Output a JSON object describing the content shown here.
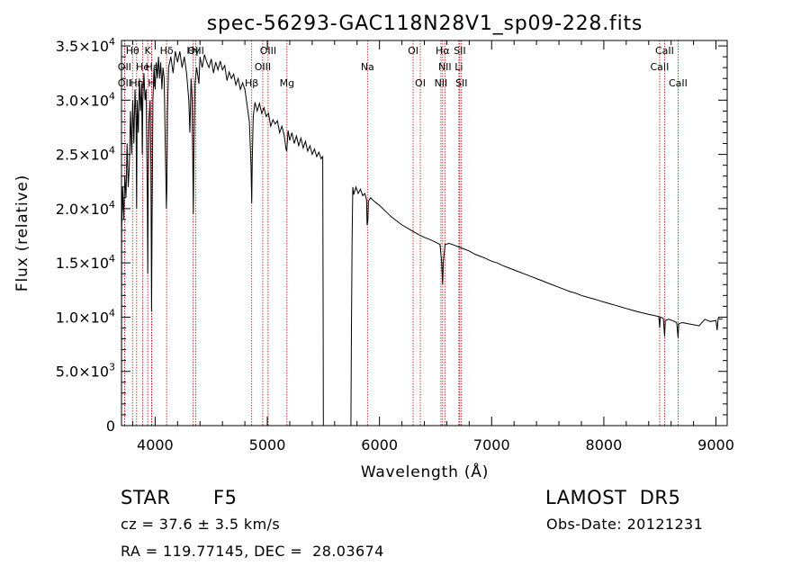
{
  "chart_data": {
    "type": "line",
    "title": "spec-56293-GAC118N28V1_sp09-228.fits",
    "xlabel": "Wavelength (Å)",
    "ylabel": "Flux (relative)",
    "xlim": [
      3700,
      9100
    ],
    "ylim": [
      0,
      35500
    ],
    "x_ticks": [
      4000,
      5000,
      6000,
      7000,
      8000,
      9000
    ],
    "x_tick_labels": [
      "4000",
      "5000",
      "6000",
      "7000",
      "8000",
      "9000"
    ],
    "y_ticks": [
      0,
      5000,
      10000,
      15000,
      20000,
      25000,
      30000,
      35000
    ],
    "y_tick_labels": [
      {
        "mant": "0",
        "exp": ""
      },
      {
        "mant": "5.0×10",
        "exp": "3"
      },
      {
        "mant": "1.0×10",
        "exp": "4"
      },
      {
        "mant": "1.5×10",
        "exp": "4"
      },
      {
        "mant": "2.0×10",
        "exp": "4"
      },
      {
        "mant": "2.5×10",
        "exp": "4"
      },
      {
        "mant": "3.0×10",
        "exp": "4"
      },
      {
        "mant": "3.5×10",
        "exp": "4"
      }
    ],
    "grid": false,
    "spectrum": [
      [
        3700,
        0
      ],
      [
        3702,
        18000
      ],
      [
        3710,
        22000
      ],
      [
        3720,
        19000
      ],
      [
        3730,
        23000
      ],
      [
        3740,
        21000
      ],
      [
        3750,
        26000
      ],
      [
        3760,
        22000
      ],
      [
        3770,
        24000
      ],
      [
        3780,
        29000
      ],
      [
        3790,
        25000
      ],
      [
        3800,
        30000
      ],
      [
        3810,
        26000
      ],
      [
        3820,
        31000
      ],
      [
        3830,
        28000
      ],
      [
        3835,
        20000
      ],
      [
        3840,
        30000
      ],
      [
        3850,
        27000
      ],
      [
        3860,
        32000
      ],
      [
        3870,
        29000
      ],
      [
        3880,
        31500
      ],
      [
        3885,
        25000
      ],
      [
        3890,
        30000
      ],
      [
        3900,
        32500
      ],
      [
        3910,
        30000
      ],
      [
        3920,
        31000
      ],
      [
        3930,
        21000
      ],
      [
        3934,
        14000
      ],
      [
        3938,
        22000
      ],
      [
        3945,
        28000
      ],
      [
        3955,
        30000
      ],
      [
        3962,
        24000
      ],
      [
        3968,
        10500
      ],
      [
        3972,
        18000
      ],
      [
        3980,
        30000
      ],
      [
        3990,
        33000
      ],
      [
        4000,
        31000
      ],
      [
        4010,
        33500
      ],
      [
        4020,
        32000
      ],
      [
        4030,
        34000
      ],
      [
        4040,
        32000
      ],
      [
        4050,
        33500
      ],
      [
        4060,
        31000
      ],
      [
        4070,
        33000
      ],
      [
        4080,
        32000
      ],
      [
        4090,
        26000
      ],
      [
        4100,
        20000
      ],
      [
        4104,
        22000
      ],
      [
        4110,
        29000
      ],
      [
        4120,
        33000
      ],
      [
        4140,
        34000
      ],
      [
        4160,
        32500
      ],
      [
        4180,
        34500
      ],
      [
        4200,
        33500
      ],
      [
        4220,
        34500
      ],
      [
        4240,
        33000
      ],
      [
        4260,
        34000
      ],
      [
        4280,
        32500
      ],
      [
        4300,
        30000
      ],
      [
        4310,
        27000
      ],
      [
        4320,
        32000
      ],
      [
        4330,
        30000
      ],
      [
        4340,
        19500
      ],
      [
        4345,
        25000
      ],
      [
        4355,
        31500
      ],
      [
        4370,
        33000
      ],
      [
        4390,
        31500
      ],
      [
        4400,
        34000
      ],
      [
        4420,
        33000
      ],
      [
        4440,
        34200
      ],
      [
        4460,
        33500
      ],
      [
        4480,
        33000
      ],
      [
        4500,
        33800
      ],
      [
        4520,
        32500
      ],
      [
        4540,
        33500
      ],
      [
        4560,
        32800
      ],
      [
        4580,
        33600
      ],
      [
        4600,
        32800
      ],
      [
        4620,
        33200
      ],
      [
        4640,
        31800
      ],
      [
        4660,
        32600
      ],
      [
        4680,
        32000
      ],
      [
        4700,
        32400
      ],
      [
        4720,
        31400
      ],
      [
        4740,
        32000
      ],
      [
        4760,
        31000
      ],
      [
        4780,
        31600
      ],
      [
        4800,
        31000
      ],
      [
        4820,
        29500
      ],
      [
        4840,
        28000
      ],
      [
        4855,
        24000
      ],
      [
        4861,
        20500
      ],
      [
        4866,
        24500
      ],
      [
        4875,
        28500
      ],
      [
        4890,
        29800
      ],
      [
        4910,
        29000
      ],
      [
        4930,
        29700
      ],
      [
        4950,
        28800
      ],
      [
        4970,
        29300
      ],
      [
        4990,
        28500
      ],
      [
        5010,
        28800
      ],
      [
        5030,
        27600
      ],
      [
        5050,
        28200
      ],
      [
        5070,
        27800
      ],
      [
        5090,
        28100
      ],
      [
        5110,
        27000
      ],
      [
        5130,
        27600
      ],
      [
        5150,
        26800
      ],
      [
        5167,
        25500
      ],
      [
        5173,
        25300
      ],
      [
        5185,
        27200
      ],
      [
        5200,
        26300
      ],
      [
        5220,
        27000
      ],
      [
        5240,
        26000
      ],
      [
        5260,
        26700
      ],
      [
        5280,
        25800
      ],
      [
        5300,
        26500
      ],
      [
        5320,
        25600
      ],
      [
        5340,
        26200
      ],
      [
        5360,
        25300
      ],
      [
        5380,
        25800
      ],
      [
        5400,
        25000
      ],
      [
        5420,
        25500
      ],
      [
        5440,
        24800
      ],
      [
        5460,
        25200
      ],
      [
        5480,
        24600
      ],
      [
        5494,
        24800
      ],
      [
        5497,
        12000
      ],
      [
        5500,
        0
      ],
      [
        5745,
        0
      ],
      [
        5750,
        9000
      ],
      [
        5756,
        17000
      ],
      [
        5762,
        22000
      ],
      [
        5770,
        21300
      ],
      [
        5790,
        22000
      ],
      [
        5810,
        21400
      ],
      [
        5830,
        21800
      ],
      [
        5850,
        21200
      ],
      [
        5870,
        21400
      ],
      [
        5885,
        20800
      ],
      [
        5890,
        18500
      ],
      [
        5896,
        18800
      ],
      [
        5902,
        20700
      ],
      [
        5920,
        21000
      ],
      [
        5950,
        20700
      ],
      [
        6000,
        20300
      ],
      [
        6050,
        19800
      ],
      [
        6100,
        19300
      ],
      [
        6150,
        18900
      ],
      [
        6200,
        18500
      ],
      [
        6250,
        18200
      ],
      [
        6300,
        17900
      ],
      [
        6350,
        17600
      ],
      [
        6400,
        17350
      ],
      [
        6450,
        17150
      ],
      [
        6500,
        16900
      ],
      [
        6540,
        16700
      ],
      [
        6555,
        15000
      ],
      [
        6563,
        13000
      ],
      [
        6570,
        15200
      ],
      [
        6585,
        16700
      ],
      [
        6620,
        16800
      ],
      [
        6650,
        16700
      ],
      [
        6700,
        16500
      ],
      [
        6750,
        16300
      ],
      [
        6800,
        16100
      ],
      [
        6850,
        15800
      ],
      [
        6900,
        15600
      ],
      [
        6950,
        15400
      ],
      [
        7000,
        15150
      ],
      [
        7050,
        15000
      ],
      [
        7100,
        14750
      ],
      [
        7150,
        14550
      ],
      [
        7200,
        14350
      ],
      [
        7250,
        14150
      ],
      [
        7300,
        13950
      ],
      [
        7350,
        13750
      ],
      [
        7400,
        13550
      ],
      [
        7450,
        13350
      ],
      [
        7500,
        13150
      ],
      [
        7550,
        12950
      ],
      [
        7600,
        12750
      ],
      [
        7650,
        12550
      ],
      [
        7700,
        12350
      ],
      [
        7750,
        12200
      ],
      [
        7800,
        12000
      ],
      [
        7850,
        11850
      ],
      [
        7900,
        11700
      ],
      [
        7950,
        11550
      ],
      [
        8000,
        11400
      ],
      [
        8050,
        11250
      ],
      [
        8100,
        11100
      ],
      [
        8150,
        10950
      ],
      [
        8200,
        10800
      ],
      [
        8250,
        10650
      ],
      [
        8300,
        10500
      ],
      [
        8350,
        10380
      ],
      [
        8400,
        10250
      ],
      [
        8450,
        10150
      ],
      [
        8490,
        10050
      ],
      [
        8498,
        9000
      ],
      [
        8504,
        10000
      ],
      [
        8530,
        9900
      ],
      [
        8542,
        8200
      ],
      [
        8548,
        9700
      ],
      [
        8580,
        9800
      ],
      [
        8620,
        9650
      ],
      [
        8650,
        9500
      ],
      [
        8662,
        8100
      ],
      [
        8668,
        9400
      ],
      [
        8700,
        9500
      ],
      [
        8750,
        9400
      ],
      [
        8800,
        9300
      ],
      [
        8850,
        9200
      ],
      [
        8900,
        9800
      ],
      [
        8950,
        9600
      ],
      [
        9000,
        9700
      ],
      [
        9010,
        8800
      ],
      [
        9020,
        9900
      ],
      [
        9040,
        9800
      ],
      [
        9060,
        9850
      ]
    ],
    "lines": [
      {
        "w": 3727,
        "label": "OII",
        "row": 1
      },
      {
        "w": 3727,
        "label": "OII",
        "row": 2
      },
      {
        "w": 3798,
        "label": "Hθ",
        "row": 0
      },
      {
        "w": 3835,
        "label": "Hη",
        "row": 2
      },
      {
        "w": 3889,
        "label": "He",
        "row": 1
      },
      {
        "w": 3934,
        "label": "K",
        "row": 0
      },
      {
        "w": 3968,
        "label": "H",
        "row": 2
      },
      {
        "w": 3970,
        "label": "Hε",
        "row": 1
      },
      {
        "w": 4102,
        "label": "Hδ",
        "row": 0
      },
      {
        "w": 4340,
        "label": "Hγ",
        "row": 0
      },
      {
        "w": 4363,
        "label": "OIII",
        "row": 0
      },
      {
        "w": 4861,
        "label": "Hβ",
        "row": 2
      },
      {
        "w": 4959,
        "label": "OIII",
        "row": 1
      },
      {
        "w": 5007,
        "label": "OIII",
        "row": 0
      },
      {
        "w": 5175,
        "label": "Mg",
        "row": 2
      },
      {
        "w": 5893,
        "label": "Na",
        "row": 1
      },
      {
        "w": 6300,
        "label": "OI",
        "row": 0
      },
      {
        "w": 6364,
        "label": "OI",
        "row": 2
      },
      {
        "w": 6548,
        "label": "NII",
        "row": 2
      },
      {
        "w": 6563,
        "label": "Hα",
        "row": 0
      },
      {
        "w": 6583,
        "label": "NII",
        "row": 1
      },
      {
        "w": 6708,
        "label": "Li",
        "row": 1
      },
      {
        "w": 6716,
        "label": "SII",
        "row": 0
      },
      {
        "w": 6731,
        "label": "SII",
        "row": 2
      },
      {
        "w": 8498,
        "label": "CaII",
        "row": 1
      },
      {
        "w": 8542,
        "label": "CaII",
        "row": 0
      },
      {
        "w": 8662,
        "label": "CaII",
        "row": 2
      }
    ],
    "line_color": "#c00000"
  },
  "info": {
    "class_label": "STAR",
    "subclass": "F5",
    "survey": "LAMOST  DR5",
    "cz": "cz = 37.6 ± 3.5 km/s",
    "obs_date": "Obs-Date: 20121231",
    "coords": "RA = 119.77145, DEC =  28.03674"
  }
}
